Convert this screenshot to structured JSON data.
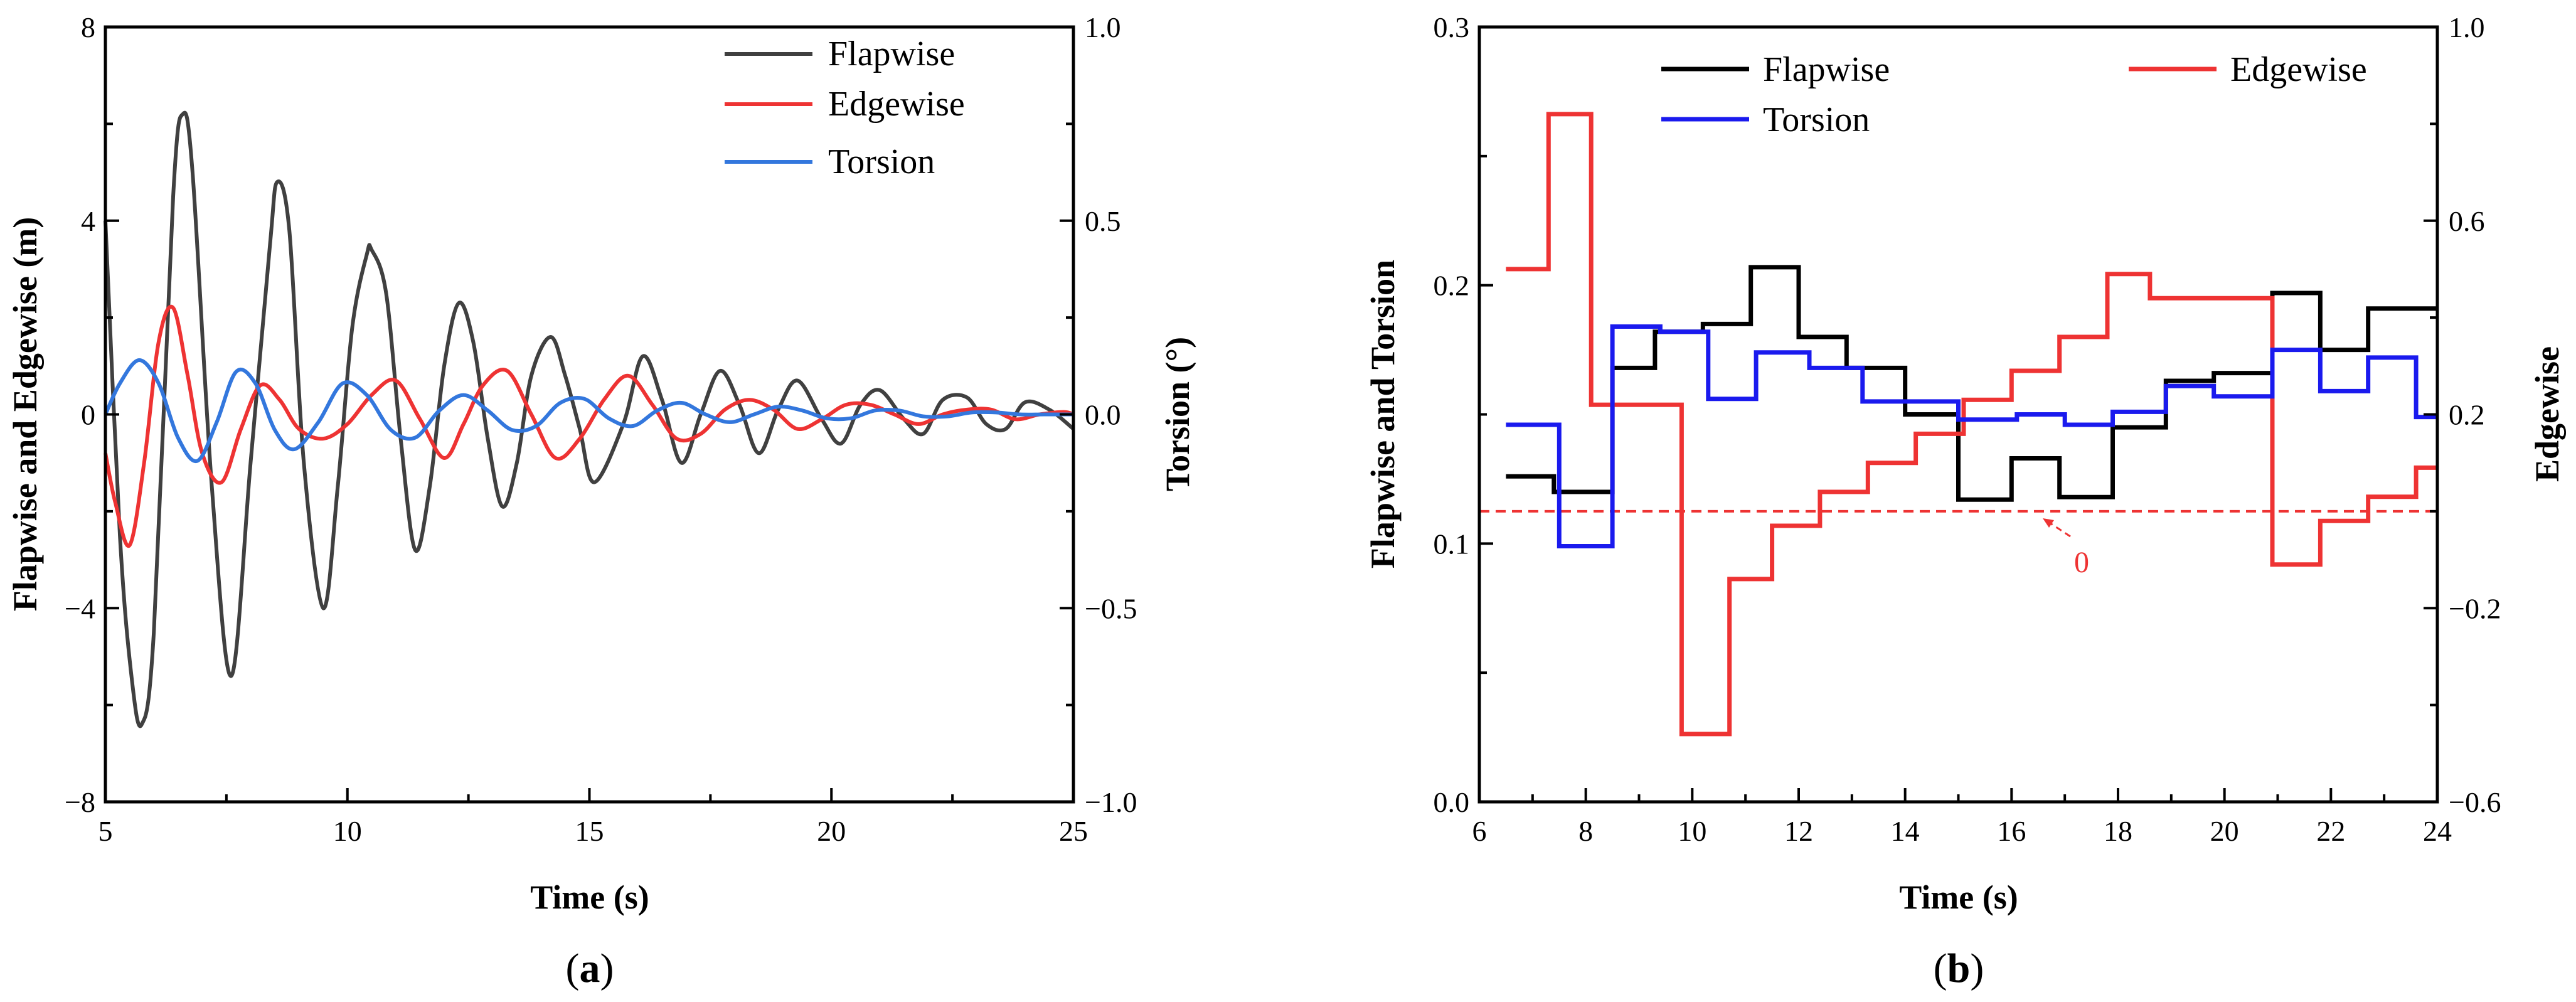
{
  "chart_data": [
    {
      "id": "a",
      "type": "line",
      "caption": "a",
      "xlabel": "Time (s)",
      "ylabel_left": "Flapwise and Edgewise (m)",
      "ylabel_right": "Torsion (°)",
      "xlim": [
        5,
        25
      ],
      "ylim_left": [
        -8,
        8
      ],
      "ylim_right": [
        -1.0,
        1.0
      ],
      "x_ticks": [
        "5",
        "10",
        "15",
        "20",
        "25"
      ],
      "y_ticks_left": [
        "−8",
        "−4",
        "0",
        "4",
        "8"
      ],
      "y_ticks_right": [
        "−1.0",
        "−0.5",
        "0.0",
        "0.5",
        "1.0"
      ],
      "legend_position": "top-right",
      "series": [
        {
          "name": "Flapwise",
          "color": "#404040",
          "axis": "left",
          "x": [
            5.0,
            5.3,
            5.55,
            5.75,
            6.0,
            6.4,
            6.6,
            6.8,
            7.2,
            7.6,
            8.0,
            8.4,
            8.55,
            8.8,
            9.1,
            9.5,
            9.8,
            10.1,
            10.4,
            10.5,
            10.8,
            11.1,
            11.4,
            11.7,
            12.0,
            12.3,
            12.6,
            12.9,
            13.2,
            13.5,
            13.8,
            14.2,
            14.5,
            14.8,
            15.1,
            15.7,
            16.1,
            16.5,
            16.9,
            17.3,
            17.7,
            18.1,
            18.5,
            18.9,
            19.3,
            19.8,
            20.2,
            20.6,
            21.0,
            21.5,
            21.9,
            22.3,
            22.8,
            23.2,
            23.6,
            24.0,
            24.5,
            25.0
          ],
          "y": [
            4.0,
            -2.5,
            -5.5,
            -6.4,
            -4.5,
            4.5,
            6.2,
            5.0,
            -1.5,
            -5.4,
            -1.0,
            3.5,
            4.8,
            3.8,
            -1.0,
            -4.0,
            -1.5,
            1.8,
            3.3,
            3.4,
            2.5,
            -0.5,
            -2.8,
            -1.5,
            1.0,
            2.3,
            1.5,
            -0.5,
            -1.9,
            -1.0,
            0.8,
            1.6,
            0.8,
            -0.3,
            -1.4,
            -0.2,
            1.2,
            0.3,
            -1.0,
            0.0,
            0.9,
            0.2,
            -0.8,
            0.1,
            0.7,
            -0.1,
            -0.6,
            0.2,
            0.5,
            -0.1,
            -0.4,
            0.3,
            0.35,
            -0.2,
            -0.3,
            0.25,
            0.1,
            -0.3
          ]
        },
        {
          "name": "Edgewise",
          "color": "#ee3333",
          "axis": "left",
          "x": [
            5.0,
            5.2,
            5.5,
            5.8,
            6.1,
            6.4,
            6.7,
            7.0,
            7.4,
            7.8,
            8.2,
            8.6,
            9.0,
            9.5,
            10.0,
            10.5,
            11.0,
            11.5,
            12.0,
            12.4,
            12.8,
            13.3,
            13.8,
            14.3,
            14.8,
            15.3,
            15.8,
            16.3,
            16.8,
            17.3,
            17.8,
            18.3,
            18.8,
            19.3,
            19.8,
            20.3,
            20.8,
            21.3,
            21.8,
            22.3,
            22.8,
            23.3,
            23.8,
            24.3,
            24.8,
            25.0
          ],
          "y": [
            -0.8,
            -1.8,
            -2.7,
            -1.0,
            1.5,
            2.2,
            0.8,
            -0.8,
            -1.4,
            -0.3,
            0.6,
            0.3,
            -0.3,
            -0.5,
            -0.2,
            0.4,
            0.7,
            -0.1,
            -0.9,
            -0.2,
            0.6,
            0.9,
            0.0,
            -0.9,
            -0.5,
            0.3,
            0.8,
            0.2,
            -0.5,
            -0.4,
            0.1,
            0.3,
            0.1,
            -0.3,
            -0.1,
            0.2,
            0.2,
            0.0,
            -0.2,
            0.0,
            0.1,
            0.1,
            -0.1,
            0.0,
            0.05,
            0.0
          ]
        },
        {
          "name": "Torsion",
          "color": "#3377dd",
          "axis": "right",
          "x": [
            5.0,
            5.3,
            5.7,
            6.1,
            6.5,
            6.9,
            7.3,
            7.7,
            8.1,
            8.5,
            8.9,
            9.4,
            9.9,
            10.4,
            10.9,
            11.4,
            11.9,
            12.4,
            12.9,
            13.4,
            13.9,
            14.4,
            14.9,
            15.4,
            15.9,
            16.4,
            16.9,
            17.4,
            17.9,
            18.4,
            18.9,
            19.4,
            19.9,
            20.4,
            20.9,
            21.4,
            21.9,
            22.4,
            22.9,
            23.4,
            23.9,
            24.4,
            25.0
          ],
          "y": [
            0.0,
            0.08,
            0.14,
            0.08,
            -0.06,
            -0.12,
            -0.02,
            0.11,
            0.08,
            -0.04,
            -0.09,
            -0.02,
            0.08,
            0.05,
            -0.04,
            -0.06,
            0.01,
            0.05,
            0.01,
            -0.04,
            -0.03,
            0.03,
            0.04,
            -0.01,
            -0.03,
            0.01,
            0.03,
            0.0,
            -0.02,
            0.0,
            0.02,
            0.01,
            -0.01,
            -0.01,
            0.01,
            0.01,
            -0.005,
            -0.005,
            0.005,
            0.005,
            0.0,
            0.0,
            0.0
          ]
        }
      ]
    },
    {
      "id": "b",
      "type": "line",
      "caption": "b",
      "xlabel": "Time (s)",
      "ylabel_left": "Flapwise and Torsion",
      "ylabel_right": "Edgewise",
      "xlim": [
        6,
        24
      ],
      "ylim_left": [
        0.0,
        0.3
      ],
      "ylim_right": [
        -0.6,
        1.0
      ],
      "x_ticks": [
        "6",
        "8",
        "10",
        "12",
        "14",
        "16",
        "18",
        "20",
        "22",
        "24"
      ],
      "y_ticks_left": [
        "0.0",
        "0.1",
        "0.2",
        "0.3"
      ],
      "y_ticks_right": [
        "−0.6",
        "−0.2",
        "0.2",
        "0.6",
        "1.0"
      ],
      "legend_position": "top",
      "annotation": {
        "label": "0",
        "note": "Edgewise zero reference (dashed)",
        "edgewise_value": 0.0,
        "color": "#ee3333"
      },
      "series": [
        {
          "name": "Flapwise",
          "color": "#000000",
          "axis": "left",
          "step": true,
          "x": [
            6.5,
            7.4,
            8.5,
            9.3,
            10.2,
            11.1,
            12.0,
            12.9,
            14.0,
            15.0,
            16.0,
            16.9,
            17.9,
            18.9,
            19.8,
            20.9,
            21.8,
            22.7,
            24.0
          ],
          "y": [
            0.126,
            0.12,
            0.168,
            0.182,
            0.185,
            0.207,
            0.18,
            0.168,
            0.15,
            0.117,
            0.133,
            0.118,
            0.145,
            0.163,
            0.166,
            0.197,
            0.175,
            0.191,
            0.191
          ]
        },
        {
          "name": "Edgewise",
          "color": "#ee3333",
          "axis": "right",
          "step": true,
          "x": [
            6.5,
            7.3,
            8.1,
            9.8,
            10.7,
            11.5,
            12.4,
            13.3,
            14.2,
            15.1,
            16.0,
            16.9,
            17.8,
            18.6,
            20.9,
            21.8,
            22.7,
            23.6,
            24.0
          ],
          "y": [
            0.5,
            0.82,
            0.22,
            -0.46,
            -0.14,
            -0.03,
            0.04,
            0.1,
            0.16,
            0.23,
            0.29,
            0.36,
            0.49,
            0.44,
            -0.11,
            -0.02,
            0.03,
            0.09,
            0.09
          ]
        },
        {
          "name": "Torsion",
          "color": "#1a1aee",
          "axis": "left",
          "step": true,
          "x": [
            6.5,
            7.5,
            8.5,
            9.4,
            10.3,
            11.2,
            12.2,
            13.2,
            14.2,
            15.0,
            16.1,
            17.0,
            17.9,
            18.9,
            19.8,
            20.9,
            21.8,
            22.7,
            23.6,
            24.0
          ],
          "y": [
            0.146,
            0.099,
            0.184,
            0.182,
            0.156,
            0.174,
            0.168,
            0.155,
            0.155,
            0.148,
            0.15,
            0.146,
            0.151,
            0.161,
            0.157,
            0.175,
            0.159,
            0.172,
            0.149,
            0.149
          ]
        }
      ]
    }
  ]
}
